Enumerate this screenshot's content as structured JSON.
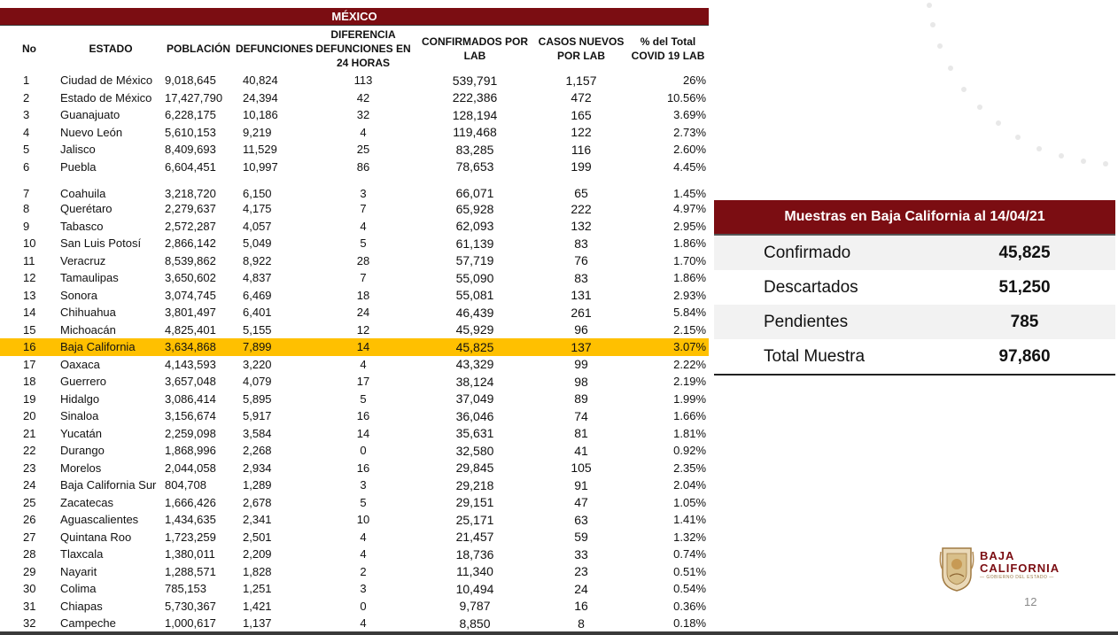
{
  "table": {
    "banner": "MÉXICO",
    "headers": {
      "no": "No",
      "estado": "ESTADO",
      "poblacion": "POBLACIÓN",
      "defunciones": "DEFUNCIONES",
      "diferencia": "DIFERENCIA DEFUNCIONES EN 24 HORAS",
      "confirmados": "CONFIRMADOS POR LAB",
      "casos_nuevos": "CASOS NUEVOS POR LAB",
      "pct_total": "% del Total COVID 19 LAB"
    },
    "rows": [
      {
        "no": "1",
        "estado": "Ciudad de México",
        "poblacion": "9,018,645",
        "defunciones": "40,824",
        "diferencia": "113",
        "confirmados": "539,791",
        "nuevos": "1,157",
        "pct": "26%"
      },
      {
        "no": "2",
        "estado": "Estado de México",
        "poblacion": "17,427,790",
        "defunciones": "24,394",
        "diferencia": "42",
        "confirmados": "222,386",
        "nuevos": "472",
        "pct": "10.56%"
      },
      {
        "no": "3",
        "estado": "Guanajuato",
        "poblacion": "6,228,175",
        "defunciones": "10,186",
        "diferencia": "32",
        "confirmados": "128,194",
        "nuevos": "165",
        "pct": "3.69%"
      },
      {
        "no": "4",
        "estado": "Nuevo León",
        "poblacion": "5,610,153",
        "defunciones": "9,219",
        "diferencia": "4",
        "confirmados": "119,468",
        "nuevos": "122",
        "pct": "2.73%"
      },
      {
        "no": "5",
        "estado": "Jalisco",
        "poblacion": "8,409,693",
        "defunciones": "11,529",
        "diferencia": "25",
        "confirmados": "83,285",
        "nuevos": "116",
        "pct": "2.60%"
      },
      {
        "no": "6",
        "estado": "Puebla",
        "poblacion": "6,604,451",
        "defunciones": "10,997",
        "diferencia": "86",
        "confirmados": "78,653",
        "nuevos": "199",
        "pct": "4.45%"
      },
      {
        "no": "7",
        "estado": "Coahuila",
        "poblacion": "3,218,720",
        "defunciones": "6,150",
        "diferencia": "3",
        "confirmados": "66,071",
        "nuevos": "65",
        "pct": "1.45%"
      },
      {
        "no": "8",
        "estado": "Querétaro",
        "poblacion": "2,279,637",
        "defunciones": "4,175",
        "diferencia": "7",
        "confirmados": "65,928",
        "nuevos": "222",
        "pct": "4.97%"
      },
      {
        "no": "9",
        "estado": "Tabasco",
        "poblacion": "2,572,287",
        "defunciones": "4,057",
        "diferencia": "4",
        "confirmados": "62,093",
        "nuevos": "132",
        "pct": "2.95%"
      },
      {
        "no": "10",
        "estado": "San Luis Potosí",
        "poblacion": "2,866,142",
        "defunciones": "5,049",
        "diferencia": "5",
        "confirmados": "61,139",
        "nuevos": "83",
        "pct": "1.86%"
      },
      {
        "no": "11",
        "estado": "Veracruz",
        "poblacion": "8,539,862",
        "defunciones": "8,922",
        "diferencia": "28",
        "confirmados": "57,719",
        "nuevos": "76",
        "pct": "1.70%"
      },
      {
        "no": "12",
        "estado": "Tamaulipas",
        "poblacion": "3,650,602",
        "defunciones": "4,837",
        "diferencia": "7",
        "confirmados": "55,090",
        "nuevos": "83",
        "pct": "1.86%"
      },
      {
        "no": "13",
        "estado": "Sonora",
        "poblacion": "3,074,745",
        "defunciones": "6,469",
        "diferencia": "18",
        "confirmados": "55,081",
        "nuevos": "131",
        "pct": "2.93%"
      },
      {
        "no": "14",
        "estado": "Chihuahua",
        "poblacion": "3,801,497",
        "defunciones": "6,401",
        "diferencia": "24",
        "confirmados": "46,439",
        "nuevos": "261",
        "pct": "5.84%"
      },
      {
        "no": "15",
        "estado": "Michoacán",
        "poblacion": "4,825,401",
        "defunciones": "5,155",
        "diferencia": "12",
        "confirmados": "45,929",
        "nuevos": "96",
        "pct": "2.15%"
      },
      {
        "no": "16",
        "estado": "Baja California",
        "poblacion": "3,634,868",
        "defunciones": "7,899",
        "diferencia": "14",
        "confirmados": "45,825",
        "nuevos": "137",
        "pct": "3.07%"
      },
      {
        "no": "17",
        "estado": "Oaxaca",
        "poblacion": "4,143,593",
        "defunciones": "3,220",
        "diferencia": "4",
        "confirmados": "43,329",
        "nuevos": "99",
        "pct": "2.22%"
      },
      {
        "no": "18",
        "estado": "Guerrero",
        "poblacion": "3,657,048",
        "defunciones": "4,079",
        "diferencia": "17",
        "confirmados": "38,124",
        "nuevos": "98",
        "pct": "2.19%"
      },
      {
        "no": "19",
        "estado": "Hidalgo",
        "poblacion": "3,086,414",
        "defunciones": "5,895",
        "diferencia": "5",
        "confirmados": "37,049",
        "nuevos": "89",
        "pct": "1.99%"
      },
      {
        "no": "20",
        "estado": "Sinaloa",
        "poblacion": "3,156,674",
        "defunciones": "5,917",
        "diferencia": "16",
        "confirmados": "36,046",
        "nuevos": "74",
        "pct": "1.66%"
      },
      {
        "no": "21",
        "estado": "Yucatán",
        "poblacion": "2,259,098",
        "defunciones": "3,584",
        "diferencia": "14",
        "confirmados": "35,631",
        "nuevos": "81",
        "pct": "1.81%"
      },
      {
        "no": "22",
        "estado": "Durango",
        "poblacion": "1,868,996",
        "defunciones": "2,268",
        "diferencia": "0",
        "confirmados": "32,580",
        "nuevos": "41",
        "pct": "0.92%"
      },
      {
        "no": "23",
        "estado": "Morelos",
        "poblacion": "2,044,058",
        "defunciones": "2,934",
        "diferencia": "16",
        "confirmados": "29,845",
        "nuevos": "105",
        "pct": "2.35%"
      },
      {
        "no": "24",
        "estado": "Baja California Sur",
        "poblacion": "804,708",
        "defunciones": "1,289",
        "diferencia": "3",
        "confirmados": "29,218",
        "nuevos": "91",
        "pct": "2.04%"
      },
      {
        "no": "25",
        "estado": "Zacatecas",
        "poblacion": "1,666,426",
        "defunciones": "2,678",
        "diferencia": "5",
        "confirmados": "29,151",
        "nuevos": "47",
        "pct": "1.05%"
      },
      {
        "no": "26",
        "estado": "Aguascalientes",
        "poblacion": "1,434,635",
        "defunciones": "2,341",
        "diferencia": "10",
        "confirmados": "25,171",
        "nuevos": "63",
        "pct": "1.41%"
      },
      {
        "no": "27",
        "estado": "Quintana Roo",
        "poblacion": "1,723,259",
        "defunciones": "2,501",
        "diferencia": "4",
        "confirmados": "21,457",
        "nuevos": "59",
        "pct": "1.32%"
      },
      {
        "no": "28",
        "estado": "Tlaxcala",
        "poblacion": "1,380,011",
        "defunciones": "2,209",
        "diferencia": "4",
        "confirmados": "18,736",
        "nuevos": "33",
        "pct": "0.74%"
      },
      {
        "no": "29",
        "estado": "Nayarit",
        "poblacion": "1,288,571",
        "defunciones": "1,828",
        "diferencia": "2",
        "confirmados": "11,340",
        "nuevos": "23",
        "pct": "0.51%"
      },
      {
        "no": "30",
        "estado": "Colima",
        "poblacion": "785,153",
        "defunciones": "1,251",
        "diferencia": "3",
        "confirmados": "10,494",
        "nuevos": "24",
        "pct": "0.54%"
      },
      {
        "no": "31",
        "estado": "Chiapas",
        "poblacion": "5,730,367",
        "defunciones": "1,421",
        "diferencia": "0",
        "confirmados": "9,787",
        "nuevos": "16",
        "pct": "0.36%"
      },
      {
        "no": "32",
        "estado": "Campeche",
        "poblacion": "1,000,617",
        "defunciones": "1,137",
        "diferencia": "4",
        "confirmados": "8,850",
        "nuevos": "8",
        "pct": "0.18%"
      }
    ],
    "highlight_row": "16",
    "tall_row": "7"
  },
  "samples": {
    "title": "Muestras en Baja California al 14/04/21",
    "rows": [
      {
        "label": "Confirmado",
        "value": "45,825"
      },
      {
        "label": "Descartados",
        "value": "51,250"
      },
      {
        "label": "Pendientes",
        "value": "785"
      },
      {
        "label": "Total Muestra",
        "value": "97,860"
      }
    ]
  },
  "logo": {
    "line1": "BAJA",
    "line2": "CALIFORNIA",
    "subtitle": "— GOBIERNO DEL ESTADO —"
  },
  "page_number": "12",
  "colors": {
    "header_bg": "#7b0d12",
    "highlight": "#ffc000"
  }
}
